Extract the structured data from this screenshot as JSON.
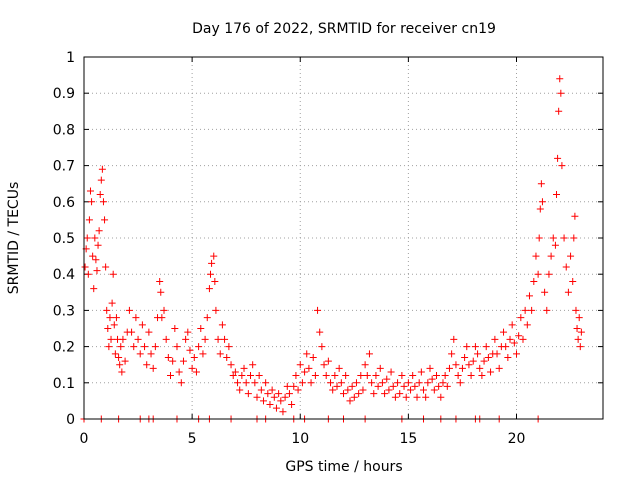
{
  "chart_data": {
    "type": "scatter",
    "title": "Day 176 of 2022, SRMTID for receiver cn19",
    "xlabel": "GPS time / hours",
    "ylabel": "SRMTID / TECUs",
    "xlim": [
      0,
      24
    ],
    "ylim": [
      0,
      1
    ],
    "xticks": [
      0,
      5,
      10,
      15,
      20
    ],
    "yticks": [
      0,
      0.1,
      0.2,
      0.3,
      0.4,
      0.5,
      0.6,
      0.7,
      0.8,
      0.9,
      1
    ],
    "ytick_labels": [
      "0",
      "0.1",
      "0.2",
      "0.3",
      "0.4",
      "0.5",
      "0.6",
      "0.7",
      "0.8",
      "0.9",
      "1"
    ],
    "grid": true,
    "marker": "+",
    "color": "#ff0000",
    "series": [
      {
        "name": "SRMTID",
        "points": [
          [
            0.05,
            0.42
          ],
          [
            0.1,
            0.47
          ],
          [
            0.15,
            0.5
          ],
          [
            0.2,
            0.4
          ],
          [
            0.25,
            0.55
          ],
          [
            0.3,
            0.63
          ],
          [
            0.35,
            0.6
          ],
          [
            0.4,
            0.45
          ],
          [
            0.45,
            0.36
          ],
          [
            0.5,
            0.5
          ],
          [
            0.55,
            0.44
          ],
          [
            0.6,
            0.41
          ],
          [
            0.65,
            0.48
          ],
          [
            0.7,
            0.52
          ],
          [
            0.75,
            0.62
          ],
          [
            0.8,
            0.66
          ],
          [
            0.85,
            0.69
          ],
          [
            0.9,
            0.6
          ],
          [
            0.95,
            0.55
          ],
          [
            1.0,
            0.42
          ],
          [
            1.05,
            0.3
          ],
          [
            1.1,
            0.25
          ],
          [
            1.15,
            0.2
          ],
          [
            1.2,
            0.28
          ],
          [
            1.25,
            0.22
          ],
          [
            1.3,
            0.32
          ],
          [
            1.35,
            0.4
          ],
          [
            1.4,
            0.26
          ],
          [
            1.45,
            0.18
          ],
          [
            1.5,
            0.28
          ],
          [
            1.55,
            0.22
          ],
          [
            1.6,
            0.17
          ],
          [
            1.65,
            0.15
          ],
          [
            1.7,
            0.2
          ],
          [
            1.75,
            0.13
          ],
          [
            1.8,
            0.22
          ],
          [
            1.9,
            0.16
          ],
          [
            2.0,
            0.24
          ],
          [
            2.1,
            0.3
          ],
          [
            2.2,
            0.24
          ],
          [
            2.3,
            0.2
          ],
          [
            2.4,
            0.28
          ],
          [
            2.5,
            0.22
          ],
          [
            2.6,
            0.18
          ],
          [
            2.7,
            0.26
          ],
          [
            2.8,
            0.2
          ],
          [
            2.9,
            0.15
          ],
          [
            3.0,
            0.24
          ],
          [
            3.1,
            0.18
          ],
          [
            3.2,
            0.14
          ],
          [
            3.3,
            0.2
          ],
          [
            3.4,
            0.28
          ],
          [
            3.5,
            0.38
          ],
          [
            3.55,
            0.35
          ],
          [
            3.6,
            0.28
          ],
          [
            3.7,
            0.3
          ],
          [
            3.8,
            0.22
          ],
          [
            3.9,
            0.17
          ],
          [
            4.0,
            0.12
          ],
          [
            4.1,
            0.16
          ],
          [
            4.2,
            0.25
          ],
          [
            4.3,
            0.2
          ],
          [
            4.4,
            0.13
          ],
          [
            4.5,
            0.1
          ],
          [
            4.6,
            0.16
          ],
          [
            4.7,
            0.22
          ],
          [
            4.8,
            0.24
          ],
          [
            4.9,
            0.19
          ],
          [
            5.0,
            0.14
          ],
          [
            5.1,
            0.17
          ],
          [
            5.2,
            0.13
          ],
          [
            5.3,
            0.2
          ],
          [
            5.4,
            0.25
          ],
          [
            5.5,
            0.18
          ],
          [
            5.6,
            0.22
          ],
          [
            5.7,
            0.28
          ],
          [
            5.8,
            0.36
          ],
          [
            5.85,
            0.4
          ],
          [
            5.9,
            0.43
          ],
          [
            6.0,
            0.45
          ],
          [
            6.05,
            0.38
          ],
          [
            6.1,
            0.3
          ],
          [
            6.2,
            0.22
          ],
          [
            6.3,
            0.18
          ],
          [
            6.4,
            0.26
          ],
          [
            6.5,
            0.22
          ],
          [
            6.6,
            0.17
          ],
          [
            6.7,
            0.2
          ],
          [
            6.8,
            0.15
          ],
          [
            6.9,
            0.12
          ],
          [
            7.0,
            0.13
          ],
          [
            7.1,
            0.1
          ],
          [
            7.2,
            0.08
          ],
          [
            7.3,
            0.12
          ],
          [
            7.4,
            0.14
          ],
          [
            7.5,
            0.1
          ],
          [
            7.6,
            0.07
          ],
          [
            7.7,
            0.12
          ],
          [
            7.8,
            0.15
          ],
          [
            7.9,
            0.1
          ],
          [
            8.0,
            0.06
          ],
          [
            8.1,
            0.12
          ],
          [
            8.2,
            0.08
          ],
          [
            8.3,
            0.05
          ],
          [
            8.4,
            0.1
          ],
          [
            8.5,
            0.07
          ],
          [
            8.6,
            0.04
          ],
          [
            8.7,
            0.08
          ],
          [
            8.8,
            0.06
          ],
          [
            8.9,
            0.03
          ],
          [
            9.0,
            0.07
          ],
          [
            9.1,
            0.05
          ],
          [
            9.2,
            0.02
          ],
          [
            9.3,
            0.06
          ],
          [
            9.4,
            0.09
          ],
          [
            9.5,
            0.07
          ],
          [
            9.6,
            0.04
          ],
          [
            9.7,
            0.09
          ],
          [
            9.8,
            0.12
          ],
          [
            9.9,
            0.08
          ],
          [
            10.0,
            0.15
          ],
          [
            10.1,
            0.1
          ],
          [
            10.2,
            0.13
          ],
          [
            10.3,
            0.18
          ],
          [
            10.4,
            0.14
          ],
          [
            10.5,
            0.1
          ],
          [
            10.6,
            0.17
          ],
          [
            10.7,
            0.12
          ],
          [
            10.8,
            0.3
          ],
          [
            10.9,
            0.24
          ],
          [
            11.0,
            0.2
          ],
          [
            11.1,
            0.15
          ],
          [
            11.2,
            0.12
          ],
          [
            11.3,
            0.16
          ],
          [
            11.4,
            0.1
          ],
          [
            11.5,
            0.08
          ],
          [
            11.6,
            0.12
          ],
          [
            11.7,
            0.09
          ],
          [
            11.8,
            0.14
          ],
          [
            11.9,
            0.1
          ],
          [
            12.0,
            0.07
          ],
          [
            12.1,
            0.12
          ],
          [
            12.2,
            0.08
          ],
          [
            12.3,
            0.05
          ],
          [
            12.4,
            0.09
          ],
          [
            12.5,
            0.06
          ],
          [
            12.6,
            0.1
          ],
          [
            12.7,
            0.07
          ],
          [
            12.8,
            0.12
          ],
          [
            12.9,
            0.08
          ],
          [
            13.0,
            0.15
          ],
          [
            13.1,
            0.12
          ],
          [
            13.2,
            0.18
          ],
          [
            13.3,
            0.1
          ],
          [
            13.4,
            0.07
          ],
          [
            13.5,
            0.12
          ],
          [
            13.6,
            0.09
          ],
          [
            13.7,
            0.14
          ],
          [
            13.8,
            0.1
          ],
          [
            13.9,
            0.07
          ],
          [
            14.0,
            0.11
          ],
          [
            14.1,
            0.08
          ],
          [
            14.2,
            0.13
          ],
          [
            14.3,
            0.09
          ],
          [
            14.4,
            0.06
          ],
          [
            14.5,
            0.1
          ],
          [
            14.6,
            0.07
          ],
          [
            14.7,
            0.12
          ],
          [
            14.8,
            0.09
          ],
          [
            14.9,
            0.06
          ],
          [
            15.0,
            0.1
          ],
          [
            15.1,
            0.08
          ],
          [
            15.2,
            0.12
          ],
          [
            15.3,
            0.09
          ],
          [
            15.4,
            0.06
          ],
          [
            15.5,
            0.1
          ],
          [
            15.6,
            0.13
          ],
          [
            15.7,
            0.08
          ],
          [
            15.8,
            0.06
          ],
          [
            15.9,
            0.1
          ],
          [
            16.0,
            0.14
          ],
          [
            16.1,
            0.11
          ],
          [
            16.2,
            0.08
          ],
          [
            16.3,
            0.12
          ],
          [
            16.4,
            0.09
          ],
          [
            16.5,
            0.06
          ],
          [
            16.6,
            0.1
          ],
          [
            16.7,
            0.12
          ],
          [
            16.8,
            0.09
          ],
          [
            16.9,
            0.14
          ],
          [
            17.0,
            0.18
          ],
          [
            17.1,
            0.22
          ],
          [
            17.2,
            0.15
          ],
          [
            17.3,
            0.12
          ],
          [
            17.4,
            0.1
          ],
          [
            17.5,
            0.14
          ],
          [
            17.6,
            0.17
          ],
          [
            17.7,
            0.2
          ],
          [
            17.8,
            0.15
          ],
          [
            17.9,
            0.12
          ],
          [
            18.0,
            0.16
          ],
          [
            18.1,
            0.2
          ],
          [
            18.2,
            0.18
          ],
          [
            18.3,
            0.14
          ],
          [
            18.4,
            0.12
          ],
          [
            18.5,
            0.16
          ],
          [
            18.6,
            0.2
          ],
          [
            18.7,
            0.17
          ],
          [
            18.8,
            0.13
          ],
          [
            18.9,
            0.18
          ],
          [
            19.0,
            0.22
          ],
          [
            19.1,
            0.18
          ],
          [
            19.2,
            0.14
          ],
          [
            19.3,
            0.2
          ],
          [
            19.4,
            0.24
          ],
          [
            19.5,
            0.2
          ],
          [
            19.6,
            0.17
          ],
          [
            19.7,
            0.22
          ],
          [
            19.8,
            0.26
          ],
          [
            19.9,
            0.21
          ],
          [
            20.0,
            0.18
          ],
          [
            20.1,
            0.23
          ],
          [
            20.2,
            0.28
          ],
          [
            20.3,
            0.22
          ],
          [
            20.4,
            0.3
          ],
          [
            20.5,
            0.26
          ],
          [
            20.6,
            0.34
          ],
          [
            20.7,
            0.3
          ],
          [
            20.8,
            0.38
          ],
          [
            20.9,
            0.45
          ],
          [
            21.0,
            0.4
          ],
          [
            21.05,
            0.5
          ],
          [
            21.1,
            0.58
          ],
          [
            21.15,
            0.65
          ],
          [
            21.2,
            0.6
          ],
          [
            21.3,
            0.35
          ],
          [
            21.4,
            0.3
          ],
          [
            21.5,
            0.4
          ],
          [
            21.6,
            0.45
          ],
          [
            21.7,
            0.5
          ],
          [
            21.8,
            0.48
          ],
          [
            21.85,
            0.62
          ],
          [
            21.9,
            0.72
          ],
          [
            21.95,
            0.85
          ],
          [
            22.0,
            0.94
          ],
          [
            22.05,
            0.9
          ],
          [
            22.1,
            0.7
          ],
          [
            22.2,
            0.5
          ],
          [
            22.3,
            0.42
          ],
          [
            22.4,
            0.35
          ],
          [
            22.5,
            0.45
          ],
          [
            22.6,
            0.38
          ],
          [
            22.65,
            0.5
          ],
          [
            22.7,
            0.56
          ],
          [
            22.75,
            0.3
          ],
          [
            22.8,
            0.25
          ],
          [
            22.85,
            0.22
          ],
          [
            22.9,
            0.28
          ],
          [
            22.95,
            0.2
          ],
          [
            23.0,
            0.24
          ],
          [
            0.0,
            0.0
          ],
          [
            0.8,
            0.0
          ],
          [
            1.6,
            0.0
          ],
          [
            2.6,
            0.0
          ],
          [
            3.0,
            0.0
          ],
          [
            3.2,
            0.0
          ],
          [
            4.3,
            0.0
          ],
          [
            5.3,
            0.0
          ],
          [
            5.8,
            0.0
          ],
          [
            6.8,
            0.0
          ],
          [
            8.0,
            0.0
          ],
          [
            8.4,
            0.0
          ],
          [
            9.7,
            0.0
          ],
          [
            10.2,
            0.0
          ],
          [
            11.3,
            0.0
          ],
          [
            12.0,
            0.0
          ],
          [
            13.0,
            0.0
          ],
          [
            14.7,
            0.0
          ],
          [
            15.7,
            0.0
          ],
          [
            16.5,
            0.0
          ],
          [
            17.2,
            0.0
          ],
          [
            18.1,
            0.0
          ],
          [
            18.3,
            0.0
          ],
          [
            19.2,
            0.0
          ],
          [
            21.0,
            0.0
          ]
        ]
      }
    ]
  }
}
